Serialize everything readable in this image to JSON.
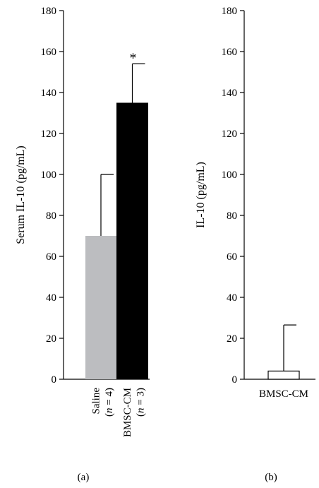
{
  "chart_data": [
    {
      "type": "bar",
      "panel_label": "(a)",
      "ylabel": "Serum IL-10 (pg/mL)",
      "ylim": [
        0,
        180
      ],
      "yticks": [
        0,
        20,
        40,
        60,
        80,
        100,
        120,
        140,
        160,
        180
      ],
      "categories": [
        {
          "name": "Saline",
          "n": "(n = 4)",
          "n_italic": "n",
          "n_rest": " = 4)"
        },
        {
          "name": "BMSC-CM",
          "n": "(n = 3)",
          "n_italic": "n",
          "n_rest": " = 3)"
        }
      ],
      "values": [
        70,
        135
      ],
      "error_upper": [
        100,
        154
      ],
      "significance": [
        null,
        "*"
      ],
      "colors": {
        "Saline": "#bcbdc0",
        "BMSC-CM": "#000000"
      }
    },
    {
      "type": "bar",
      "panel_label": "(b)",
      "ylabel": "IL-10 (pg/mL)",
      "ylim": [
        0,
        180
      ],
      "yticks": [
        0,
        20,
        40,
        60,
        80,
        100,
        120,
        140,
        160,
        180
      ],
      "categories": [
        {
          "name": "BMSC-CM"
        }
      ],
      "values": [
        4
      ],
      "error_upper": [
        26.5
      ],
      "colors": {
        "BMSC-CM": "#ffffff"
      }
    }
  ]
}
